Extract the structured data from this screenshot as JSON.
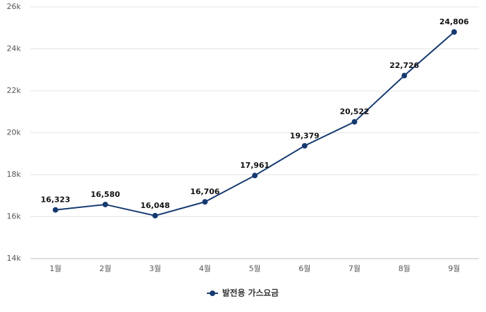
{
  "chart_data": {
    "type": "line",
    "categories": [
      "1월",
      "2월",
      "3월",
      "4월",
      "5월",
      "6월",
      "7월",
      "8월",
      "9월"
    ],
    "series": [
      {
        "name": "발전용 가스요금",
        "color": "#163a70",
        "values": [
          16323,
          16580,
          16048,
          16706,
          17961,
          19379,
          20522,
          22726,
          24806
        ],
        "value_labels": [
          "16,323",
          "16,580",
          "16,048",
          "16,706",
          "17,961",
          "19,379",
          "20,522",
          "22,726",
          "24,806"
        ]
      }
    ],
    "ylim": [
      14000,
      26000
    ],
    "yticks": [
      {
        "value": 14000,
        "label": "14k"
      },
      {
        "value": 16000,
        "label": "16k"
      },
      {
        "value": 18000,
        "label": "18k"
      },
      {
        "value": 20000,
        "label": "20k"
      },
      {
        "value": 22000,
        "label": "22k"
      },
      {
        "value": 24000,
        "label": "24k"
      },
      {
        "value": 26000,
        "label": "26k"
      }
    ],
    "grid": true
  }
}
